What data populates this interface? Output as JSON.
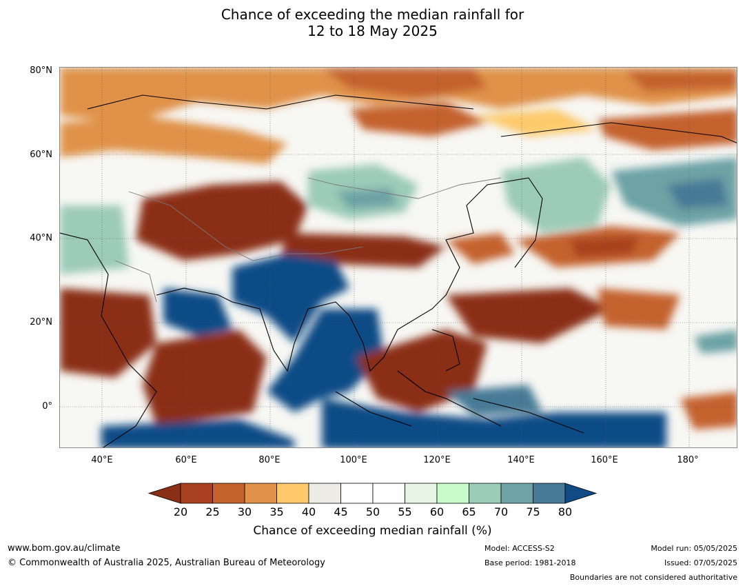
{
  "title": {
    "line1": "Chance of exceeding the median rainfall for",
    "line2": "12 to 18 May 2025"
  },
  "map": {
    "lat_labels": [
      "80°N",
      "60°N",
      "40°N",
      "20°N",
      "0°"
    ],
    "lon_labels": [
      "40°E",
      "60°E",
      "80°E",
      "100°E",
      "120°E",
      "140°E",
      "160°E",
      "180°"
    ]
  },
  "colorbar": {
    "ticks": [
      "20",
      "25",
      "30",
      "35",
      "40",
      "45",
      "50",
      "55",
      "60",
      "65",
      "70",
      "75",
      "80"
    ],
    "label": "Chance of exceeding median rainfall (%)",
    "colors": [
      "#8b2e16",
      "#a9401f",
      "#c4622e",
      "#e0924a",
      "#fdc96a",
      "#ecebe6",
      "#ffffff",
      "#ffffff",
      "#e8f5e6",
      "#c8fbc9",
      "#9ccbb7",
      "#6da3a5",
      "#467a96",
      "#114b86"
    ]
  },
  "footer": {
    "website": "www.bom.gov.au/climate",
    "copyright": "© Commonwealth of Australia 2025, Australian Bureau of Meteorology",
    "model": "Model: ACCESS-S2",
    "base_period": "Base period: 1981-2018",
    "model_run": "Model run: 05/05/2025",
    "issued": "Issued: 07/05/2025",
    "boundaries": "Boundaries are not considered authoritative"
  }
}
